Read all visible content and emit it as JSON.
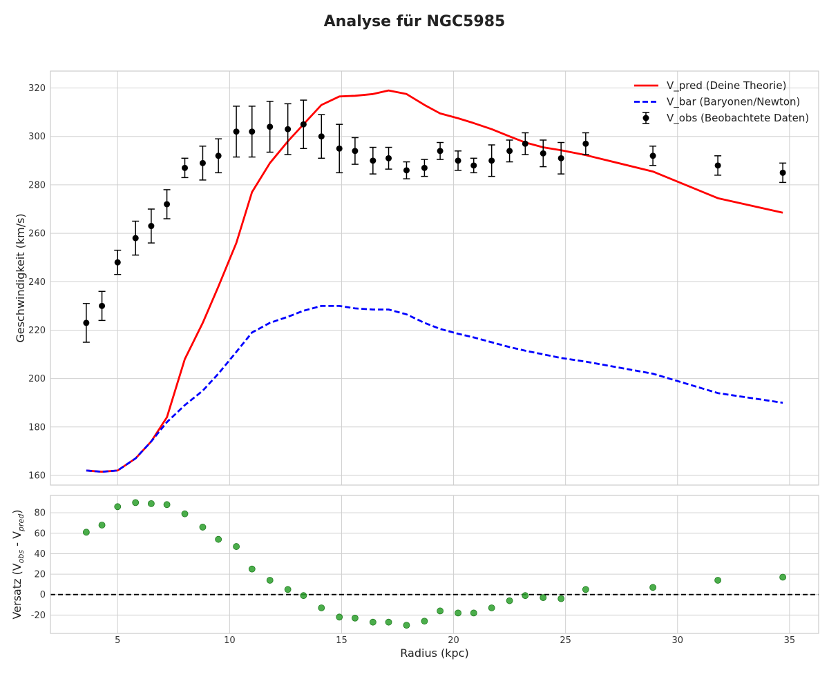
{
  "chart_data": [
    {
      "type": "line",
      "title": "Analyse für NGC5985",
      "ylabel": "Geschwindigkeit (km/s)",
      "xlim": [
        2,
        36.3
      ],
      "ylim": [
        156,
        327
      ],
      "yticks": [
        160,
        180,
        200,
        220,
        240,
        260,
        280,
        300,
        320
      ],
      "xticks": [
        5,
        10,
        15,
        20,
        25,
        30,
        35
      ],
      "grid": true,
      "legend_position": "top-right",
      "x": [
        3.6,
        4.3,
        5.0,
        5.8,
        6.5,
        7.2,
        8.0,
        8.8,
        9.5,
        10.3,
        11.0,
        11.8,
        12.6,
        13.3,
        14.1,
        14.9,
        15.6,
        16.4,
        17.1,
        17.9,
        18.7,
        19.4,
        20.2,
        20.9,
        21.7,
        22.5,
        23.2,
        24.0,
        24.8,
        25.9,
        28.9,
        31.8,
        34.7
      ],
      "series": [
        {
          "name": "V_pred (Deine Theorie)",
          "style": "solid",
          "color": "#ff0000",
          "values": [
            162,
            161.5,
            162,
            167,
            174,
            184,
            208,
            223,
            238,
            256,
            277,
            289,
            298,
            305,
            313,
            316.5,
            316.8,
            317.5,
            319,
            317.5,
            313,
            309.5,
            307.5,
            305.5,
            303,
            300,
            297.5,
            295.5,
            294.3,
            292.3,
            285.5,
            274.5,
            268.5
          ]
        },
        {
          "name": "V_bar (Baryonen/Newton)",
          "style": "dashed",
          "color": "#0000ff",
          "values": [
            162,
            161.5,
            162,
            167,
            174,
            182,
            189,
            195,
            202,
            211,
            219,
            223,
            225.5,
            228,
            230,
            230,
            229,
            228.5,
            228.5,
            226.5,
            223,
            220.5,
            218.5,
            217,
            215,
            213,
            211.5,
            210,
            208.5,
            207,
            202,
            194,
            190
          ]
        },
        {
          "name": "V_obs (Beobachtete Daten)",
          "style": "errorbar",
          "color": "#000000",
          "values": [
            223,
            230,
            248,
            258,
            263,
            272,
            287,
            289,
            292,
            302,
            302,
            304,
            303,
            305,
            300,
            295,
            294,
            290,
            291,
            286,
            287,
            294,
            290,
            288,
            290,
            294,
            297,
            293,
            291,
            297,
            292,
            288,
            285
          ],
          "errors": [
            8,
            6,
            5,
            7,
            7,
            6,
            4,
            7,
            7,
            10.5,
            10.5,
            10.5,
            10.5,
            10,
            9,
            10,
            5.5,
            5.5,
            4.5,
            3.5,
            3.5,
            3.5,
            4,
            3,
            6.5,
            4.5,
            4.5,
            5.5,
            6.5,
            4.5,
            4,
            4,
            4
          ]
        }
      ]
    },
    {
      "type": "scatter",
      "xlabel": "Radius (kpc)",
      "ylabel": "Versatz (V",
      "ylabel_sub1": "obs",
      "ylabel_mid": " - V",
      "ylabel_sub2": "pred",
      "ylabel_end": ")",
      "xlim": [
        2,
        36.3
      ],
      "ylim": [
        -38,
        97
      ],
      "yticks": [
        -20,
        0,
        20,
        40,
        60,
        80
      ],
      "xticks": [
        5,
        10,
        15,
        20,
        25,
        30,
        35
      ],
      "grid": true,
      "zero_line": {
        "value": 0,
        "style": "dashed",
        "color": "#000000"
      },
      "color": "#2ca02c",
      "x": [
        3.6,
        4.3,
        5.0,
        5.8,
        6.5,
        7.2,
        8.0,
        8.8,
        9.5,
        10.3,
        11.0,
        11.8,
        12.6,
        13.3,
        14.1,
        14.9,
        15.6,
        16.4,
        17.1,
        17.9,
        18.7,
        19.4,
        20.2,
        20.9,
        21.7,
        22.5,
        23.2,
        24.0,
        24.8,
        25.9,
        28.9,
        31.8,
        34.7
      ],
      "values": [
        61,
        68,
        86,
        90,
        89,
        88,
        79,
        66,
        54,
        47,
        25,
        14,
        5,
        -1,
        -13,
        -22,
        -23,
        -27,
        -27,
        -30,
        -26,
        -16,
        -18,
        -18,
        -13,
        -6,
        -1,
        -3,
        -4,
        5,
        7,
        14,
        17
      ]
    }
  ]
}
